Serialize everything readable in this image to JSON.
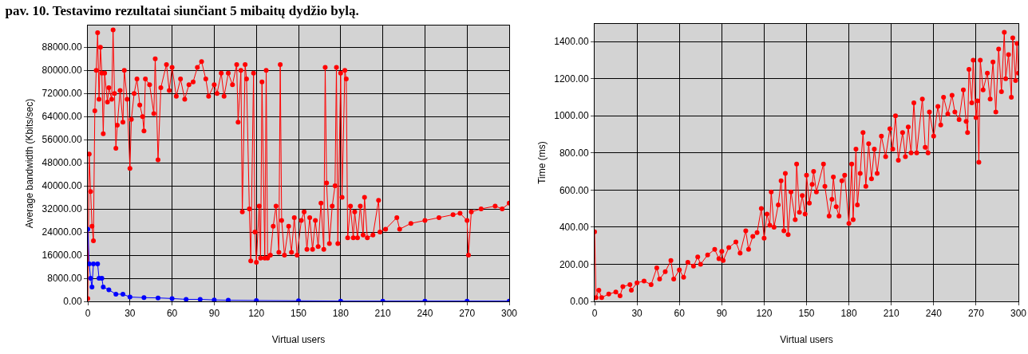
{
  "chart_data": [
    {
      "type": "line",
      "title": "pav. 10. Testavimo rezultatai siunčiant 5 mibaitų dydžio bylą.",
      "xlabel": "Virtual users",
      "ylabel": "Average bandwidth (Kbits/sec)",
      "xlim": [
        0,
        300
      ],
      "xticks": [
        0,
        30,
        60,
        90,
        120,
        150,
        180,
        210,
        240,
        270,
        300
      ],
      "ylim": [
        0,
        95500
      ],
      "yticks": [
        {
          "value": 0,
          "label": "0.00"
        },
        {
          "value": 8000,
          "label": "8000.00"
        },
        {
          "value": 16000,
          "label": "16000.00"
        },
        {
          "value": 24000,
          "label": "24000.00"
        },
        {
          "value": 32000,
          "label": "32000.00"
        },
        {
          "value": 40000,
          "label": "40000.00"
        },
        {
          "value": 48000,
          "label": "48000.00"
        },
        {
          "value": 56000,
          "label": "56000.00"
        },
        {
          "value": 64000,
          "label": "64000.00"
        },
        {
          "value": 72000,
          "label": "72000.00"
        },
        {
          "value": 80000,
          "label": "80000.00"
        },
        {
          "value": 88000,
          "label": "88000.00"
        }
      ],
      "grid": true,
      "marker": "circle",
      "line_style": "solid",
      "series": [
        {
          "color": "#ff0000",
          "x": [
            0,
            1,
            2,
            3,
            4,
            5,
            6,
            7,
            8,
            9,
            10,
            11,
            12,
            14,
            15,
            17,
            18,
            19,
            20,
            21,
            23,
            25,
            26,
            28,
            30,
            31,
            33,
            35,
            37,
            39,
            40,
            41,
            44,
            47,
            48,
            50,
            52,
            56,
            58,
            60,
            63,
            66,
            69,
            72,
            75,
            78,
            81,
            84,
            86,
            90,
            92,
            95,
            97,
            100,
            103,
            106,
            107,
            109,
            110,
            112,
            113,
            115,
            116,
            118,
            119,
            120,
            122,
            123,
            124,
            126,
            127,
            128,
            130,
            132,
            134,
            136,
            137,
            138,
            140,
            143,
            145,
            147,
            149,
            152,
            154,
            156,
            158,
            160,
            162,
            164,
            166,
            168,
            169,
            170,
            172,
            174,
            176,
            177,
            178,
            180,
            181,
            183,
            184,
            185,
            187,
            189,
            190,
            192,
            194,
            196,
            197,
            199,
            203,
            207,
            208,
            212,
            220,
            222,
            230,
            240,
            250,
            260,
            265,
            270,
            271,
            273,
            280,
            290,
            295,
            300
          ],
          "values": [
            1000,
            51000,
            38000,
            26000,
            21000,
            66000,
            80000,
            93000,
            70000,
            88000,
            79000,
            58000,
            79000,
            69000,
            74000,
            70000,
            94000,
            72000,
            53000,
            61000,
            73000,
            62000,
            80000,
            70000,
            46000,
            63000,
            72000,
            77000,
            68000,
            64000,
            59000,
            77000,
            75000,
            65000,
            84000,
            49000,
            74000,
            82000,
            73000,
            81000,
            71000,
            77000,
            70000,
            75000,
            76000,
            81000,
            83000,
            77000,
            71000,
            75000,
            72000,
            79000,
            71000,
            79000,
            75000,
            82000,
            62000,
            80000,
            31000,
            82000,
            77000,
            32000,
            14000,
            79000,
            24000,
            13500,
            33000,
            15000,
            76000,
            15000,
            80000,
            15000,
            16000,
            26000,
            33000,
            17000,
            82000,
            28000,
            16000,
            26000,
            17000,
            29000,
            16000,
            28000,
            31000,
            18000,
            29000,
            18000,
            28000,
            19000,
            34000,
            18000,
            81000,
            41000,
            20000,
            33000,
            40000,
            81000,
            20000,
            79000,
            36000,
            80000,
            77000,
            22000,
            33000,
            22000,
            31000,
            22000,
            33000,
            23000,
            36000,
            22000,
            23000,
            35000,
            24000,
            25000,
            29000,
            25000,
            27000,
            28000,
            29000,
            30000,
            30500,
            28000,
            16000,
            31000,
            32000,
            33000,
            32000,
            34000
          ]
        },
        {
          "color": "#0000ff",
          "x": [
            0,
            1,
            2,
            3,
            4,
            7,
            8,
            10,
            11,
            15,
            20,
            25,
            30,
            40,
            50,
            60,
            70,
            80,
            90,
            100,
            120,
            150,
            180,
            210,
            240,
            270,
            300
          ],
          "values": [
            25000,
            13000,
            8000,
            5000,
            13000,
            13000,
            8000,
            8000,
            5000,
            4000,
            2500,
            2500,
            1500,
            1300,
            1200,
            1000,
            700,
            700,
            500,
            400,
            300,
            200,
            100,
            100,
            100,
            100,
            100
          ]
        }
      ]
    },
    {
      "type": "line",
      "xlabel": "Virtual users",
      "ylabel": "Time (ms)",
      "xlim": [
        0,
        300
      ],
      "xticks": [
        0,
        30,
        60,
        90,
        120,
        150,
        180,
        210,
        240,
        270,
        300
      ],
      "ylim": [
        0,
        1495
      ],
      "yticks": [
        {
          "value": 0,
          "label": "0.00"
        },
        {
          "value": 200,
          "label": "200.00"
        },
        {
          "value": 400,
          "label": "400.00"
        },
        {
          "value": 600,
          "label": "600.00"
        },
        {
          "value": 800,
          "label": "800.00"
        },
        {
          "value": 1000,
          "label": "1000.00"
        },
        {
          "value": 1200,
          "label": "1200.00"
        },
        {
          "value": 1400,
          "label": "1400.00"
        }
      ],
      "grid": true,
      "marker": "circle",
      "line_style": "solid",
      "series": [
        {
          "color": "#ff0000",
          "x": [
            0,
            1,
            3,
            5,
            10,
            15,
            18,
            20,
            25,
            26,
            30,
            35,
            40,
            44,
            46,
            50,
            54,
            56,
            60,
            63,
            66,
            70,
            73,
            75,
            80,
            85,
            88,
            90,
            91,
            95,
            100,
            103,
            107,
            109,
            112,
            115,
            118,
            120,
            122,
            124,
            125,
            127,
            130,
            132,
            134,
            135,
            137,
            139,
            142,
            143,
            145,
            147,
            149,
            150,
            152,
            154,
            155,
            157,
            162,
            163,
            166,
            168,
            169,
            171,
            173,
            175,
            177,
            180,
            182,
            183,
            185,
            186,
            188,
            190,
            192,
            194,
            196,
            198,
            200,
            203,
            206,
            209,
            211,
            213,
            215,
            218,
            220,
            222,
            224,
            226,
            228,
            232,
            234,
            236,
            237,
            240,
            243,
            245,
            247,
            250,
            253,
            255,
            258,
            261,
            263,
            264,
            265,
            267,
            268,
            270,
            271,
            272,
            273,
            275,
            278,
            280,
            282,
            284,
            286,
            288,
            290,
            291,
            293,
            295,
            296,
            298,
            299,
            300
          ],
          "values": [
            375,
            20,
            60,
            20,
            40,
            50,
            30,
            80,
            90,
            60,
            100,
            110,
            90,
            180,
            120,
            160,
            220,
            120,
            170,
            130,
            210,
            190,
            240,
            200,
            250,
            280,
            230,
            270,
            220,
            290,
            320,
            260,
            380,
            280,
            350,
            370,
            500,
            340,
            470,
            410,
            590,
            400,
            520,
            650,
            380,
            690,
            360,
            590,
            440,
            740,
            480,
            570,
            470,
            680,
            530,
            630,
            700,
            590,
            740,
            620,
            460,
            550,
            670,
            510,
            460,
            650,
            680,
            420,
            740,
            440,
            820,
            520,
            690,
            910,
            620,
            850,
            660,
            820,
            690,
            890,
            780,
            930,
            820,
            1000,
            760,
            910,
            780,
            940,
            800,
            1070,
            800,
            1090,
            830,
            800,
            1020,
            890,
            1050,
            950,
            1100,
            1010,
            1110,
            1020,
            980,
            1140,
            970,
            910,
            1250,
            1070,
            1300,
            990,
            1080,
            750,
            1300,
            1140,
            1230,
            1090,
            1290,
            1020,
            1360,
            1130,
            1450,
            1200,
            1330,
            1100,
            1420,
            1190,
            1390,
            1230
          ]
        }
      ]
    }
  ]
}
